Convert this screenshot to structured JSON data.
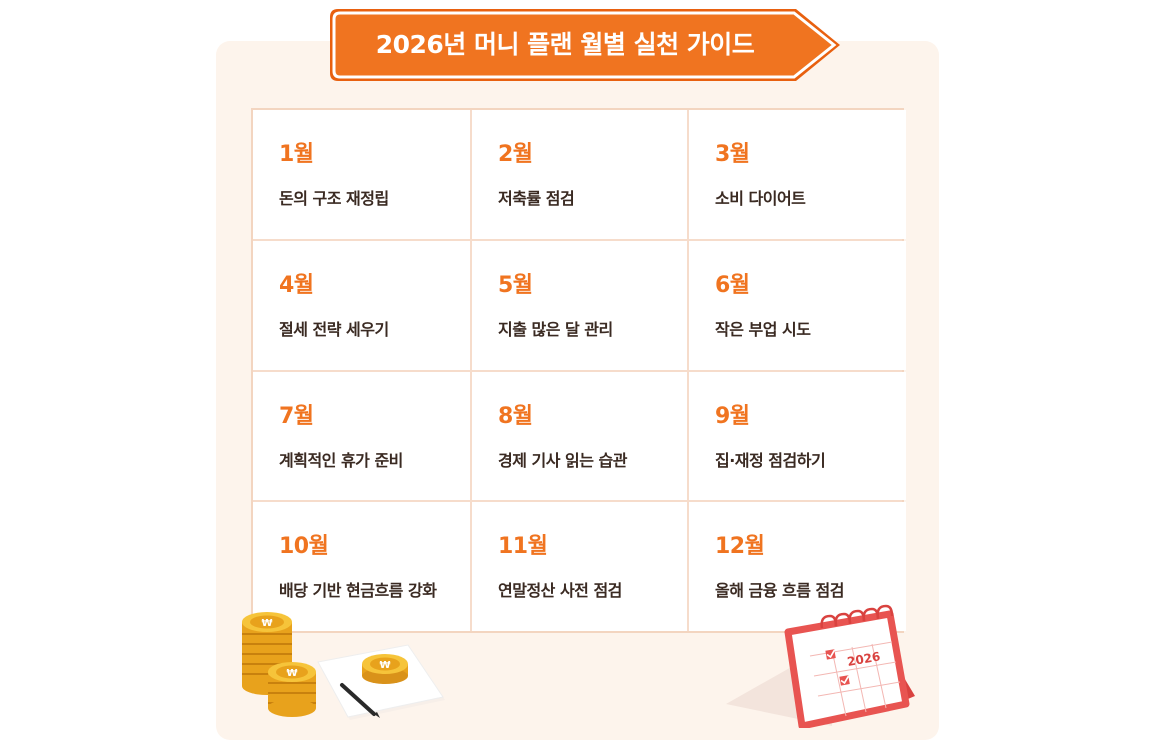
{
  "banner": {
    "title": "2026년 머니 플랜 월별 실천 가이드"
  },
  "colors": {
    "accent": "#f07420",
    "card_bg": "#fdf4ec",
    "grid_line": "#f6dccb",
    "text": "#3a2a22"
  },
  "months": [
    {
      "month": "1월",
      "task": "돈의 구조 재정립"
    },
    {
      "month": "2월",
      "task": "저축률 점검"
    },
    {
      "month": "3월",
      "task": "소비 다이어트"
    },
    {
      "month": "4월",
      "task": "절세 전략 세우기"
    },
    {
      "month": "5월",
      "task": "지출 많은 달 관리"
    },
    {
      "month": "6월",
      "task": "작은 부업 시도"
    },
    {
      "month": "7월",
      "task": "계획적인 휴가 준비"
    },
    {
      "month": "8월",
      "task": "경제 기사 읽는 습관"
    },
    {
      "month": "9월",
      "task": "집·재정 점검하기"
    },
    {
      "month": "10월",
      "task": "배당 기반 현금흐름 강화"
    },
    {
      "month": "11월",
      "task": "연말정산 사전 점검"
    },
    {
      "month": "12월",
      "task": "올해 금융 흐름 점검"
    }
  ],
  "calendar": {
    "year": "2026"
  },
  "icons": {
    "coins": "won-coin-stack-icon",
    "note": "paper-pen-icon",
    "calendar": "desk-calendar-icon"
  }
}
